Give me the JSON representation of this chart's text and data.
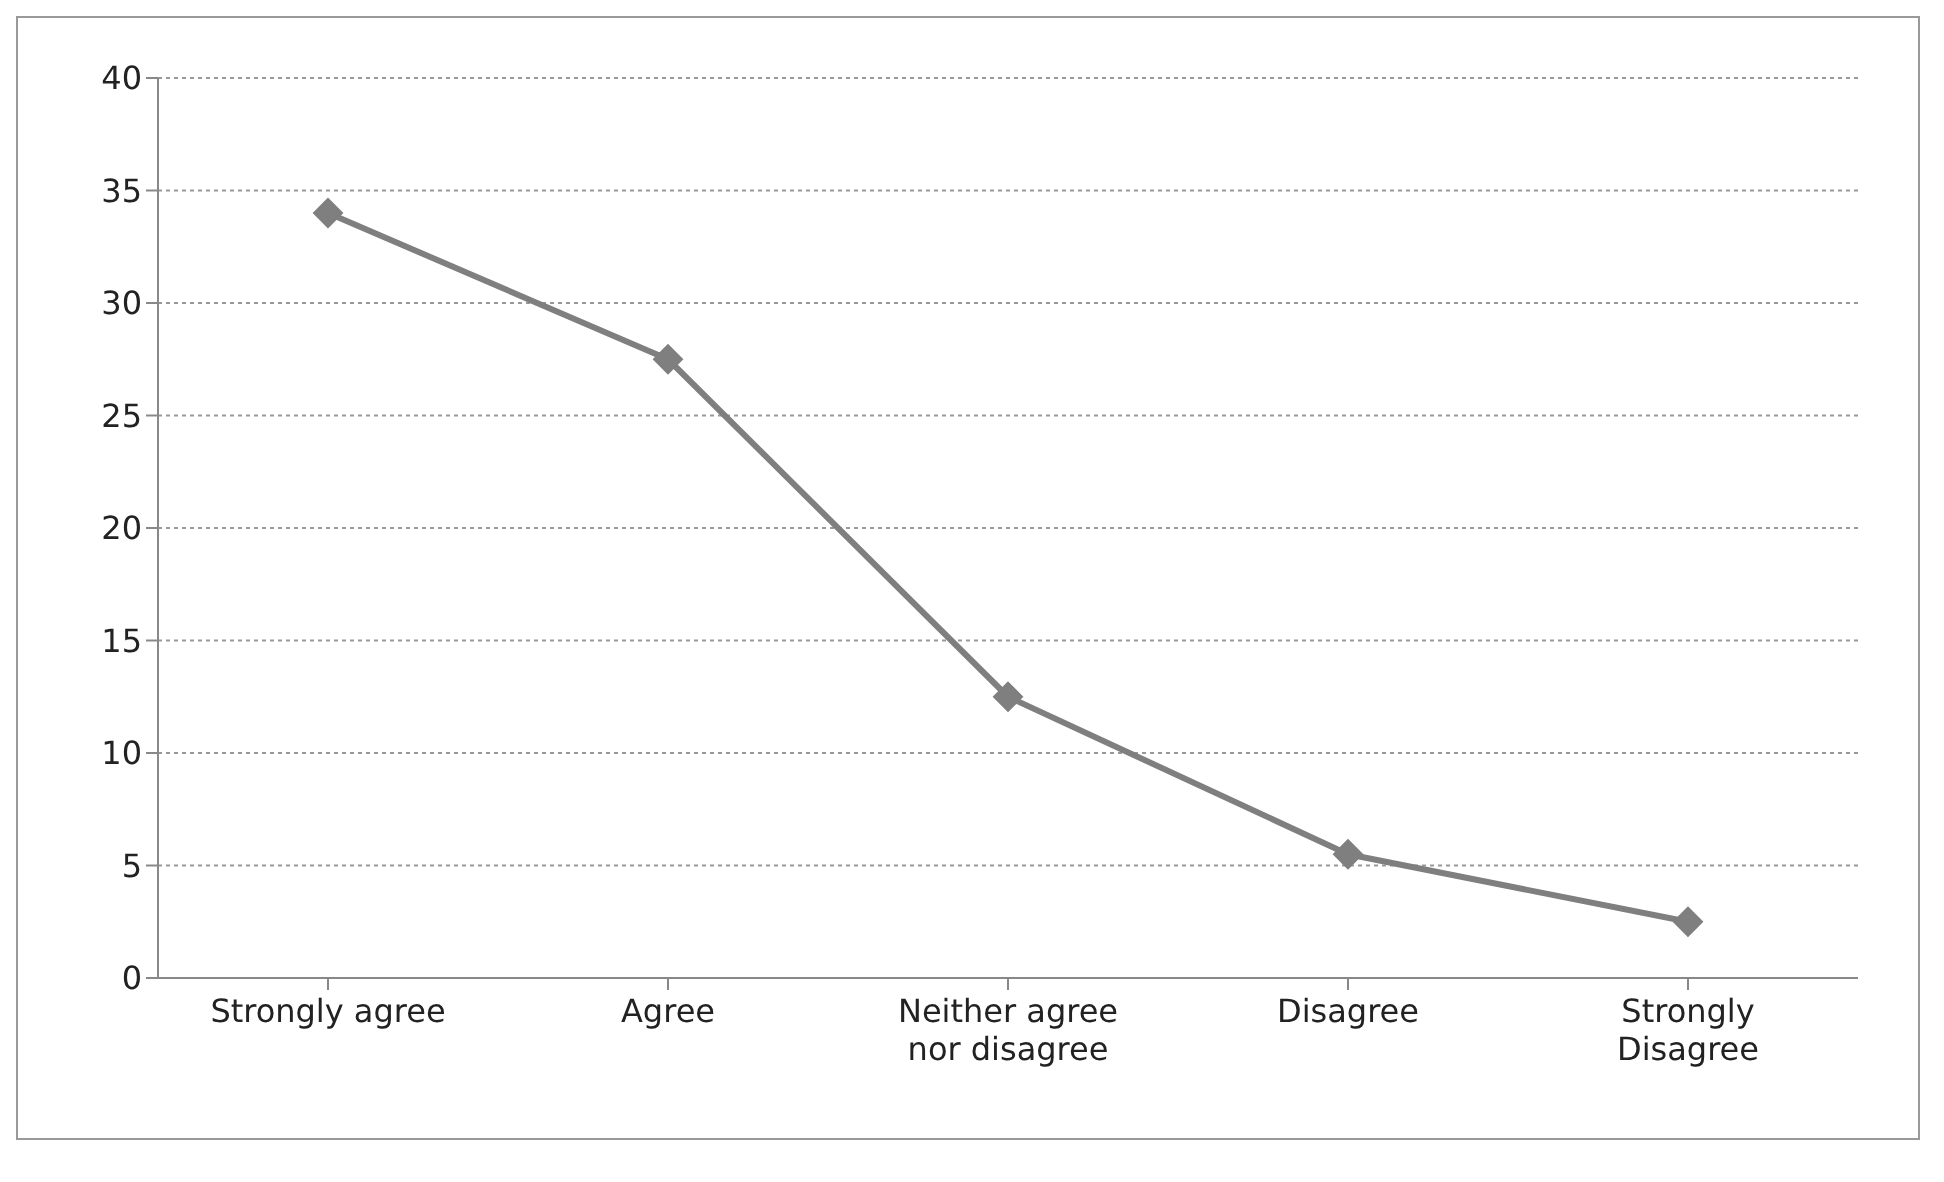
{
  "chart_data": {
    "type": "line",
    "categories": [
      "Strongly agree",
      "Agree",
      "Neither agree nor disagree",
      "Disagree",
      "Strongly Disagree"
    ],
    "series": [
      {
        "color": "#7f7f7f",
        "values": [
          34,
          27.5,
          12.5,
          5.5,
          2.5
        ]
      }
    ],
    "ylim": [
      0,
      40
    ],
    "yticks": [
      0,
      5,
      10,
      15,
      20,
      25,
      30,
      35,
      40
    ],
    "grid": "y",
    "marker": "diamond",
    "line_style": "solid"
  }
}
